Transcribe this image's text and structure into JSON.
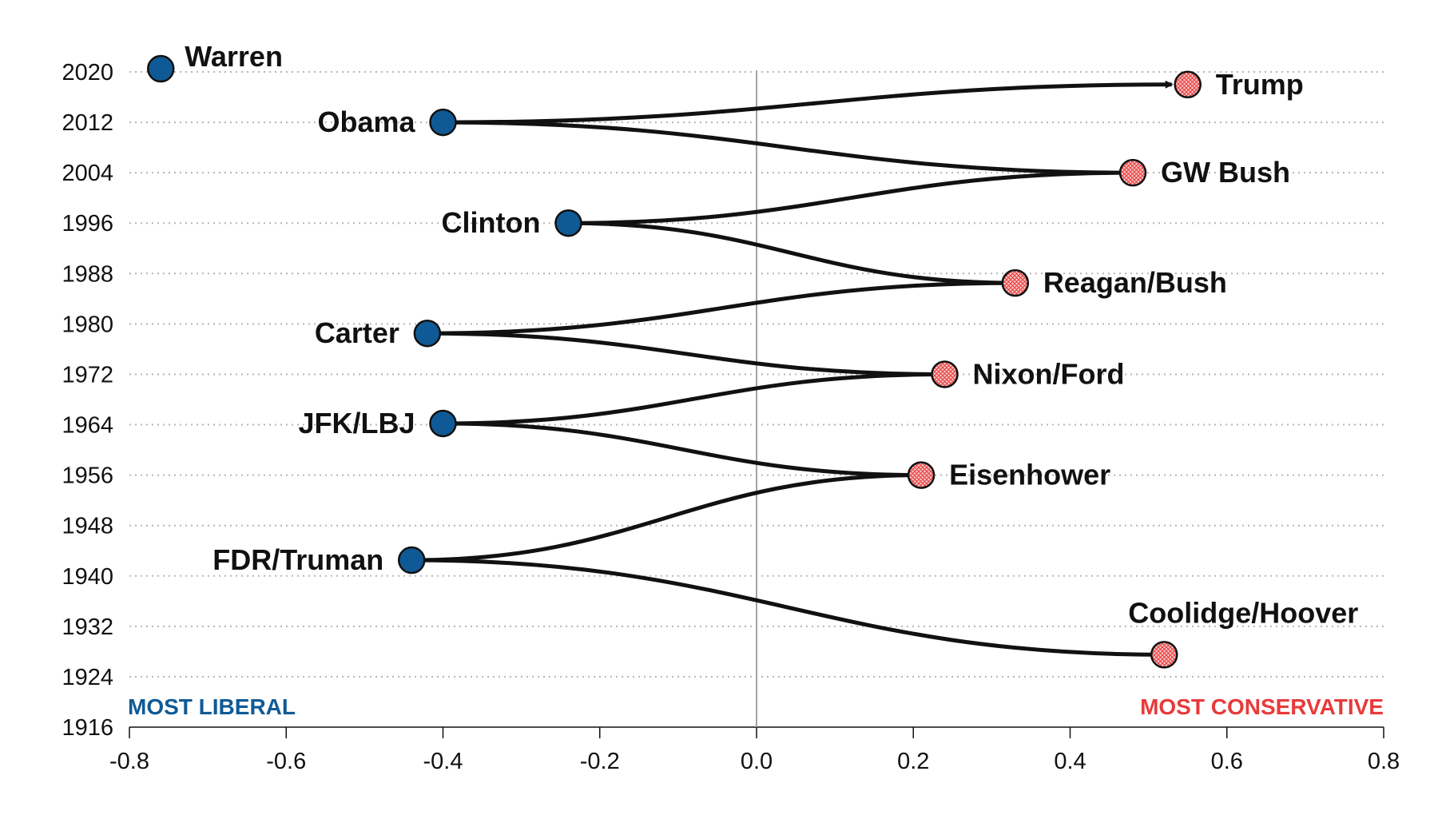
{
  "chart_data": {
    "type": "scatter",
    "title": "",
    "xlabel": "",
    "ylabel": "",
    "xlim": [
      -0.8,
      0.8
    ],
    "ylim": [
      1916,
      2024
    ],
    "x_ticks": [
      "-0.8",
      "-0.6",
      "-0.4",
      "-0.2",
      "0.0",
      "0.2",
      "0.4",
      "0.6",
      "0.8"
    ],
    "x_tick_values": [
      -0.8,
      -0.6,
      -0.4,
      -0.2,
      0.0,
      0.2,
      0.4,
      0.6,
      0.8
    ],
    "y_ticks": [
      "1916",
      "1924",
      "1932",
      "1940",
      "1948",
      "1956",
      "1964",
      "1972",
      "1980",
      "1988",
      "1996",
      "2004",
      "2012",
      "2020"
    ],
    "y_tick_values": [
      1916,
      1924,
      1932,
      1940,
      1948,
      1956,
      1964,
      1972,
      1980,
      1988,
      1996,
      2004,
      2012,
      2020
    ],
    "grid": {
      "horizontal": true,
      "style": "dotted"
    },
    "left_annotation": "MOST LIBERAL",
    "right_annotation": "MOST CONSERVATIVE",
    "colors": {
      "liberal": "#0f5a96",
      "conservative": "#e83a3a",
      "conservative_fill": "#f4b5b5",
      "line": "#111111",
      "zero_line": "#a8a39a",
      "grid": "#b5b5b5"
    },
    "points": [
      {
        "label": "Coolidge/Hoover",
        "x": 0.52,
        "y": 1927.5,
        "party": "conservative"
      },
      {
        "label": "FDR/Truman",
        "x": -0.44,
        "y": 1942.5,
        "party": "liberal"
      },
      {
        "label": "Eisenhower",
        "x": 0.21,
        "y": 1956.0,
        "party": "conservative"
      },
      {
        "label": "JFK/LBJ",
        "x": -0.4,
        "y": 1964.2,
        "party": "liberal"
      },
      {
        "label": "Nixon/Ford",
        "x": 0.24,
        "y": 1972.0,
        "party": "conservative"
      },
      {
        "label": "Carter",
        "x": -0.42,
        "y": 1978.5,
        "party": "liberal"
      },
      {
        "label": "Reagan/Bush",
        "x": 0.33,
        "y": 1986.5,
        "party": "conservative"
      },
      {
        "label": "Clinton",
        "x": -0.24,
        "y": 1996.0,
        "party": "liberal"
      },
      {
        "label": "GW Bush",
        "x": 0.48,
        "y": 2004.0,
        "party": "conservative"
      },
      {
        "label": "Obama",
        "x": -0.4,
        "y": 2012.0,
        "party": "liberal"
      },
      {
        "label": "Trump",
        "x": 0.55,
        "y": 2018.0,
        "party": "conservative"
      },
      {
        "label": "Warren",
        "x": -0.76,
        "y": 2020.5,
        "party": "liberal"
      }
    ],
    "path_order": [
      "Coolidge/Hoover",
      "FDR/Truman",
      "Eisenhower",
      "JFK/LBJ",
      "Nixon/Ford",
      "Carter",
      "Reagan/Bush",
      "Clinton",
      "GW Bush",
      "Obama",
      "Trump"
    ],
    "path_end_arrow": true
  }
}
